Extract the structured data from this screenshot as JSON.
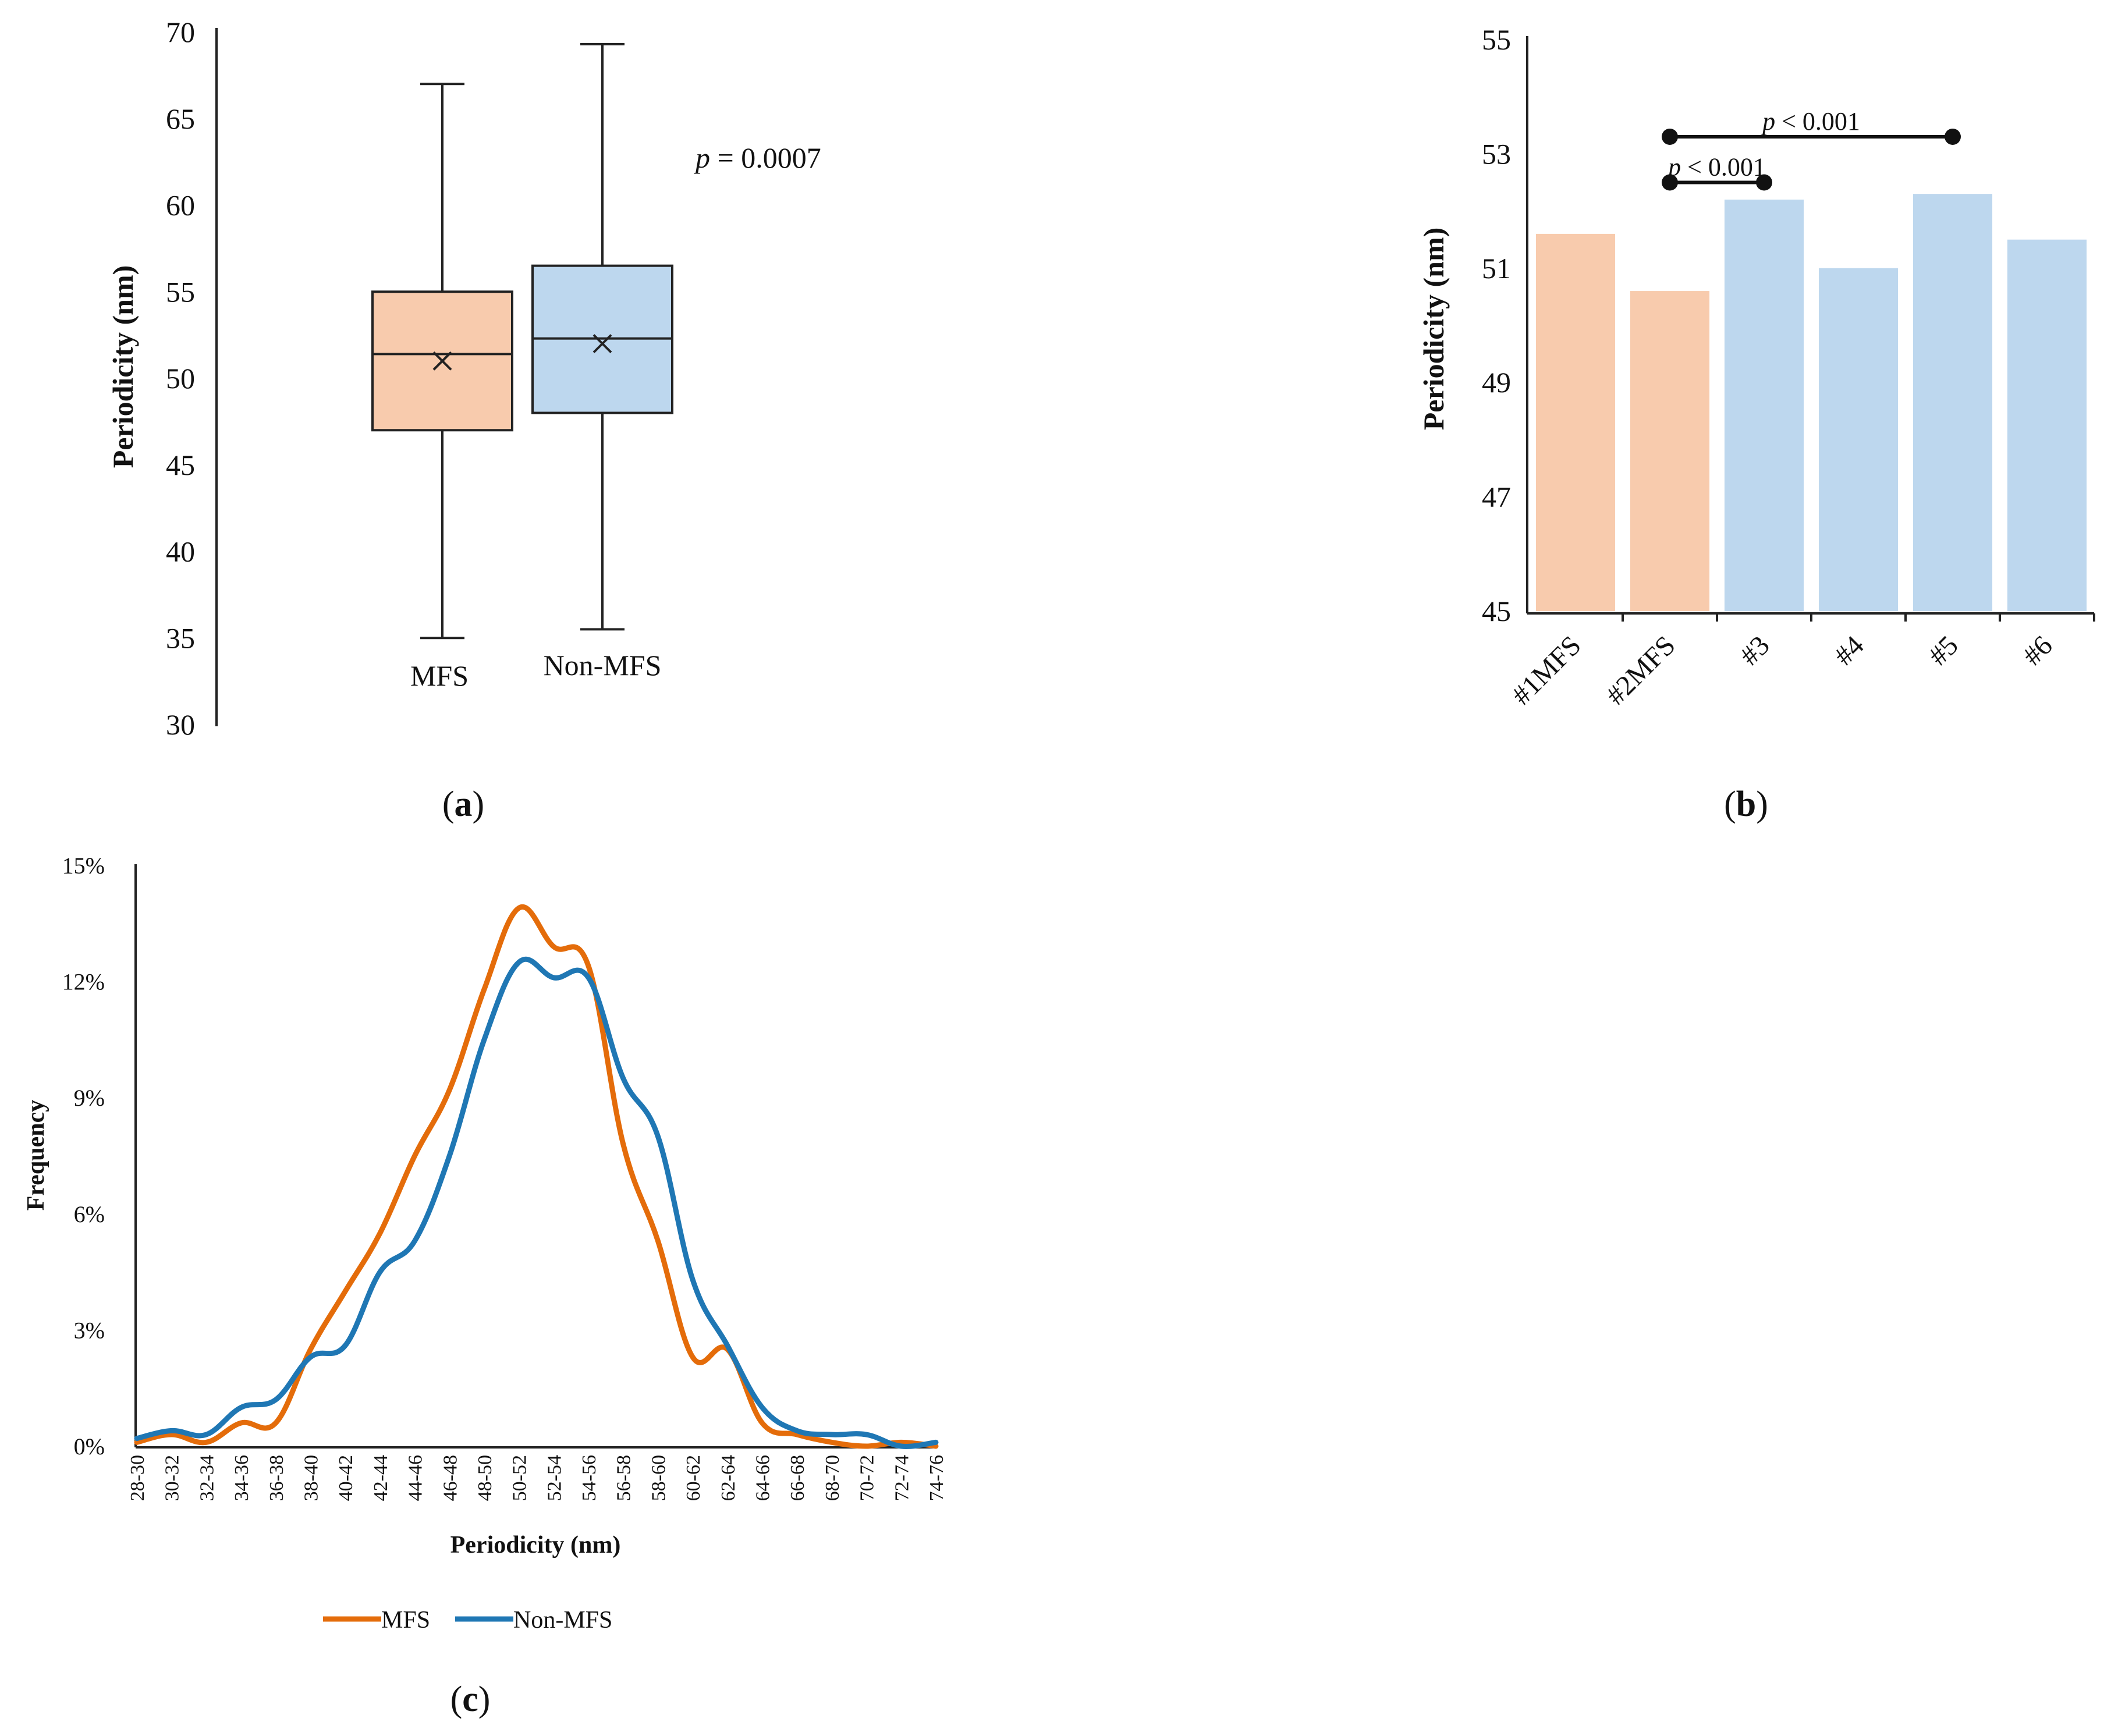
{
  "panels": {
    "a": {
      "caption_label": "a"
    },
    "b": {
      "caption_label": "b"
    },
    "c": {
      "caption_label": "c"
    }
  },
  "chart_data": [
    {
      "id": "a",
      "type": "box",
      "ylabel": "Periodicity (nm)",
      "ylim": [
        30,
        70
      ],
      "yticks": [
        30,
        35,
        40,
        45,
        50,
        55,
        60,
        65,
        70
      ],
      "annotation": {
        "italic": "p",
        "rest": " = 0.0007"
      },
      "boxes": [
        {
          "name": "MFS",
          "min": 35,
          "q1": 47,
          "median": 51.4,
          "q3": 55,
          "max": 67,
          "mean": 51,
          "color": "#F8CBAD"
        },
        {
          "name": "Non-MFS",
          "min": 35.5,
          "q1": 48,
          "median": 52.3,
          "q3": 56.5,
          "max": 69.3,
          "mean": 52,
          "color": "#BDD7EE"
        }
      ]
    },
    {
      "id": "b",
      "type": "bar",
      "ylabel": "Periodicity (nm)",
      "ylim": [
        45,
        55
      ],
      "yticks": [
        45,
        47,
        49,
        51,
        53,
        55
      ],
      "categories": [
        "#1MFS",
        "#2MFS",
        "#3",
        "#4",
        "#5",
        "#6"
      ],
      "values": [
        51.6,
        50.6,
        52.2,
        51.0,
        52.3,
        51.5
      ],
      "colors": [
        "#F8CBAD",
        "#F8CBAD",
        "#BDD7EE",
        "#BDD7EE",
        "#BDD7EE",
        "#BDD7EE"
      ],
      "significance": [
        {
          "from": 1,
          "to": 4,
          "level": 53.3,
          "italic": "p",
          "rest": " < 0.001"
        },
        {
          "from": 1,
          "to": 2,
          "level": 52.5,
          "italic": "p",
          "rest": " < 0.001"
        }
      ]
    },
    {
      "id": "c",
      "type": "line",
      "xlabel": "Periodicity (nm)",
      "ylabel": "Frequency",
      "ylim": [
        0,
        15
      ],
      "yticks": [
        "0%",
        "3%",
        "6%",
        "9%",
        "12%",
        "15%"
      ],
      "ytick_values": [
        0,
        3,
        6,
        9,
        12,
        15
      ],
      "categories": [
        "28-30",
        "30-32",
        "32-34",
        "34-36",
        "36-38",
        "38-40",
        "40-42",
        "42-44",
        "44-46",
        "46-48",
        "48-50",
        "50-52",
        "52-54",
        "54-56",
        "56-58",
        "58-60",
        "60-62",
        "62-64",
        "64-66",
        "66-68",
        "68-70",
        "70-72",
        "72-74",
        "74-76"
      ],
      "series": [
        {
          "name": "MFS",
          "color": "#E46C0A",
          "values": [
            0.1,
            0.3,
            0.1,
            0.6,
            0.6,
            2.5,
            4.0,
            5.5,
            7.5,
            9.2,
            11.8,
            13.9,
            12.9,
            12.4,
            7.8,
            5.3,
            2.3,
            2.5,
            0.6,
            0.3,
            0.1,
            0.0,
            0.1,
            0.0
          ]
        },
        {
          "name": "Non-MFS",
          "color": "#1F77B4",
          "values": [
            0.2,
            0.4,
            0.3,
            1.0,
            1.2,
            2.3,
            2.6,
            4.5,
            5.3,
            7.5,
            10.5,
            12.5,
            12.1,
            12.1,
            9.5,
            8.0,
            4.3,
            2.6,
            1.0,
            0.4,
            0.3,
            0.3,
            0.0,
            0.1
          ]
        }
      ],
      "legend_position": "bottom"
    }
  ]
}
